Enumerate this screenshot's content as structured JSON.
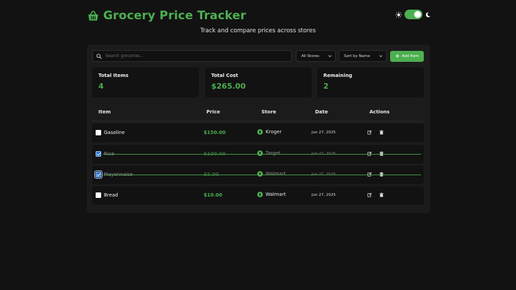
{
  "app": {
    "title": "Grocery Price Tracker",
    "subtitle": "Track and compare prices across stores",
    "accent": "#4caf50",
    "theme_toggle": {
      "state": "dark",
      "sun_icon": "sun-icon",
      "moon_icon": "moon-icon"
    }
  },
  "toolbar": {
    "search_placeholder": "Search groceries...",
    "search_value": "",
    "store_filter": "All Stores",
    "sort": "Sort by Name",
    "add_label": "Add Item"
  },
  "stats": [
    {
      "label": "Total Items",
      "value": "4"
    },
    {
      "label": "Total Cost",
      "value": "$265.00"
    },
    {
      "label": "Remaining",
      "value": "2"
    }
  ],
  "table": {
    "headers": {
      "item": "Item",
      "price": "Price",
      "store": "Store",
      "date": "Date",
      "actions": "Actions"
    },
    "rows": [
      {
        "name": "Gasoline",
        "price": "$150.00",
        "store": "Kroger",
        "date": "Jun 27, 2025",
        "checked": false
      },
      {
        "name": "Rice",
        "price": "$100.00",
        "store": "Target",
        "date": "Jun 27, 2025",
        "checked": true
      },
      {
        "name": "Mayonnaise",
        "price": "$5.00",
        "store": "Walmart",
        "date": "Jun 27, 2025",
        "checked": true
      },
      {
        "name": "Bread",
        "price": "$10.00",
        "store": "Walmart",
        "date": "Jun 27, 2025",
        "checked": false
      }
    ]
  }
}
